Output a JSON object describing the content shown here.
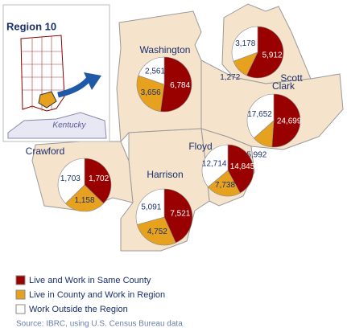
{
  "title": "Region 10",
  "inset_label": "Kentucky",
  "legend": [
    {
      "label": "Live and Work in Same County",
      "color": "#990000"
    },
    {
      "label": "Live in County and Work in Region",
      "color": "#e6a21e"
    },
    {
      "label": "Work Outside the Region",
      "color": "#ffffff"
    }
  ],
  "counties": [
    {
      "name": "Washington",
      "values": [
        6784,
        3656,
        2561
      ],
      "value_labels": [
        "6,784",
        "3,656",
        "2,561"
      ]
    },
    {
      "name": "Scott",
      "values": [
        5912,
        1272,
        3178
      ],
      "value_labels": [
        "5,912",
        "1,272",
        "3,178"
      ]
    },
    {
      "name": "Clark",
      "values": [
        24699,
        5992,
        17652
      ],
      "value_labels": [
        "24,699",
        "5,992",
        "17,652"
      ]
    },
    {
      "name": "Crawford",
      "values": [
        1702,
        1158,
        1703
      ],
      "value_labels": [
        "1,702",
        "1,158",
        "1,703"
      ]
    },
    {
      "name": "Floyd",
      "values": [
        14845,
        7738,
        12714
      ],
      "value_labels": [
        "14,845",
        "7,738",
        "12,714"
      ]
    },
    {
      "name": "Harrison",
      "values": [
        7521,
        4752,
        5091
      ],
      "value_labels": [
        "7,521",
        "4,752",
        "5,091"
      ]
    }
  ],
  "source": "Source: IBRC, using U.S. Census Bureau data"
}
